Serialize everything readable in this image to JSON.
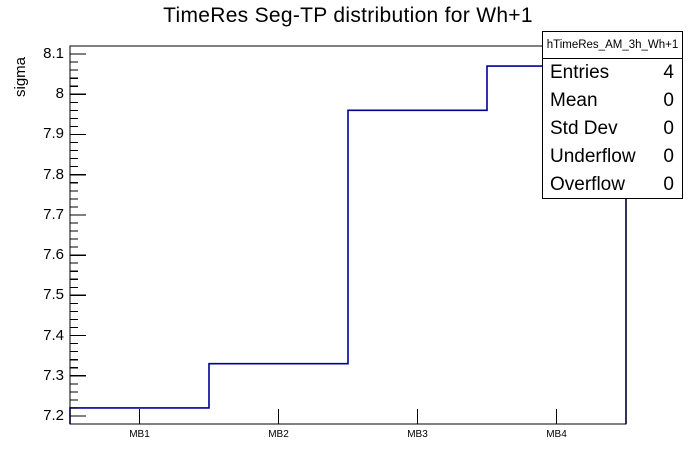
{
  "title": "TimeRes Seg-TP distribution for Wh+1",
  "y_axis": {
    "label": "sigma"
  },
  "x_axis": {
    "categories": [
      "MB1",
      "MB2",
      "MB3",
      "MB4"
    ]
  },
  "stats_box": {
    "title": "hTimeRes_AM_3h_Wh+1",
    "rows": [
      {
        "label": "Entries",
        "value": "4"
      },
      {
        "label": "Mean",
        "value": "0"
      },
      {
        "label": "Std Dev",
        "value": "0"
      },
      {
        "label": "Underflow",
        "value": "0"
      },
      {
        "label": "Overflow",
        "value": "0"
      }
    ]
  },
  "chart_data": {
    "type": "step",
    "title": "TimeRes Seg-TP distribution for Wh+1",
    "categories": [
      "MB1",
      "MB2",
      "MB3",
      "MB4"
    ],
    "values": [
      7.22,
      7.33,
      7.96,
      8.07
    ],
    "xlabel": "",
    "ylabel": "sigma",
    "ylim": [
      7.18,
      8.12
    ],
    "y_ticks": [
      {
        "value": 7.2,
        "label": "7.2"
      },
      {
        "value": 7.3,
        "label": "7.3"
      },
      {
        "value": 7.4,
        "label": "7.4"
      },
      {
        "value": 7.5,
        "label": "7.5"
      },
      {
        "value": 7.6,
        "label": "7.6"
      },
      {
        "value": 7.7,
        "label": "7.7"
      },
      {
        "value": 7.8,
        "label": "7.8"
      },
      {
        "value": 7.9,
        "label": "7.9"
      },
      {
        "value": 8,
        "label": "8"
      },
      {
        "value": 8.1,
        "label": "8.1"
      }
    ],
    "y_minor_step": 0.02,
    "grid": false,
    "legend": false,
    "line_color": "#000099"
  },
  "colors": {
    "line": "#000099",
    "frame": "#000000",
    "background": "#ffffff",
    "text": "#000000"
  }
}
